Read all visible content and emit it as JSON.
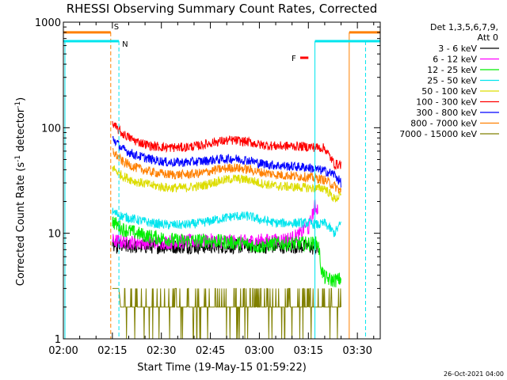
{
  "chart_data": {
    "type": "line",
    "title": "RHESSI Observing Summary Count Rates, Corrected",
    "xlabel": "Start Time (19-May-15 01:59:22)",
    "ylabel": "Corrected Count Rate (s⁻¹ detector⁻¹)",
    "y_scale": "log",
    "ylim": [
      1,
      1000
    ],
    "xlim_minutes": [
      0,
      97
    ],
    "x_ticks": [
      {
        "minute": 0,
        "label": "02:00"
      },
      {
        "minute": 15,
        "label": "02:15"
      },
      {
        "minute": 30,
        "label": "02:30"
      },
      {
        "minute": 45,
        "label": "02:45"
      },
      {
        "minute": 60,
        "label": "03:00"
      },
      {
        "minute": 75,
        "label": "03:15"
      },
      {
        "minute": 90,
        "label": "03:30"
      }
    ],
    "y_ticks": [
      {
        "value": 1,
        "label": "1"
      },
      {
        "value": 10,
        "label": "10"
      },
      {
        "value": 100,
        "label": "100"
      },
      {
        "value": 1000,
        "label": "1000"
      }
    ],
    "legend_header": [
      "Det 1,3,5,6,7,9,",
      "Att 0"
    ],
    "legend_position": "top-right",
    "timestamp": "26-Oct-2021 04:00",
    "series": [
      {
        "name": "3 - 6 keV",
        "color": "#000000",
        "minutes": [
          15,
          18,
          25,
          35,
          45,
          55,
          65,
          70,
          75,
          78
        ],
        "values": [
          7.5,
          7.5,
          7.5,
          7.5,
          7.5,
          7.5,
          7.5,
          7.5,
          7.5,
          7
        ]
      },
      {
        "name": "6 - 12 keV",
        "color": "#ff00ff",
        "minutes": [
          15,
          18,
          25,
          35,
          45,
          55,
          60,
          65,
          70,
          73,
          74,
          75,
          77,
          78
        ],
        "values": [
          8.5,
          8.3,
          8.2,
          8.3,
          8.5,
          8.3,
          8.5,
          8.5,
          9,
          10,
          12,
          11,
          18,
          17
        ]
      },
      {
        "name": "12 - 25 keV",
        "color": "#00ee00",
        "minutes": [
          15,
          18,
          25,
          35,
          45,
          55,
          60,
          65,
          70,
          75,
          78,
          79,
          80,
          82,
          84,
          85
        ],
        "values": [
          13,
          11,
          9.5,
          8.5,
          8.5,
          8,
          7.5,
          8,
          8,
          8,
          8,
          4.5,
          3.8,
          3.6,
          3.6,
          3.7
        ]
      },
      {
        "name": "25 - 50 keV",
        "color": "#00e5ee",
        "minutes": [
          15,
          18,
          22,
          27,
          32,
          37,
          42,
          47,
          52,
          57,
          60,
          65,
          70,
          75,
          78,
          80,
          83,
          85
        ],
        "values": [
          16,
          14.5,
          13.5,
          12.5,
          12,
          12,
          12.5,
          13.5,
          14.5,
          14.5,
          13.5,
          12.5,
          12.5,
          12.5,
          12,
          12.5,
          10,
          12.5
        ]
      },
      {
        "name": "50 - 100 keV",
        "color": "#dddd00",
        "minutes": [
          15,
          18,
          22,
          27,
          32,
          37,
          42,
          47,
          52,
          57,
          60,
          65,
          70,
          75,
          78,
          80,
          83,
          85
        ],
        "values": [
          42,
          35,
          31,
          28.5,
          27,
          27,
          28,
          31,
          33,
          32,
          30,
          28,
          27.5,
          27,
          26.5,
          27,
          21,
          23
        ]
      },
      {
        "name": "100 - 300 keV",
        "color": "#ff0000",
        "minutes": [
          15,
          18,
          22,
          27,
          32,
          37,
          42,
          47,
          52,
          57,
          60,
          65,
          70,
          75,
          78,
          80,
          83,
          85
        ],
        "values": [
          108,
          88,
          75,
          67,
          65,
          65,
          68,
          74,
          76,
          73,
          69,
          67,
          67,
          66,
          65,
          64,
          45,
          45
        ]
      },
      {
        "name": "300 - 800 keV",
        "color": "#0000ff",
        "minutes": [
          15,
          18,
          22,
          27,
          32,
          37,
          42,
          47,
          52,
          57,
          60,
          65,
          70,
          75,
          78,
          80,
          83,
          85
        ],
        "values": [
          80,
          63,
          55,
          50,
          47,
          47,
          48,
          50,
          51,
          49,
          46,
          44,
          43,
          42,
          40,
          39,
          36,
          30
        ]
      },
      {
        "name": "800 - 7000 keV",
        "color": "#ff8000",
        "minutes": [
          15,
          18,
          22,
          27,
          32,
          37,
          42,
          47,
          52,
          57,
          60,
          65,
          70,
          75,
          78,
          80,
          83,
          85
        ],
        "values": [
          60,
          48,
          42,
          38,
          36,
          36,
          37,
          40,
          42,
          40,
          38,
          36,
          35,
          34,
          33,
          32,
          28,
          25
        ]
      },
      {
        "name": "7000 - 15000 keV",
        "color": "#808000",
        "minutes": [
          15,
          17,
          17.5,
          25,
          35,
          45,
          55,
          65,
          75,
          85
        ],
        "values": [
          3,
          3,
          2,
          2,
          2,
          2,
          2,
          2,
          2,
          2
        ]
      }
    ],
    "flags": [
      {
        "label": "S",
        "color": "#ff8000",
        "level_value": 800,
        "segments": [
          [
            0,
            14.5
          ],
          [
            87.5,
            97
          ]
        ],
        "dashed_marker_minute": 14.5,
        "solid_marker_minute": 87.5
      },
      {
        "label": "N",
        "color": "#00e5ee",
        "level_value": 660,
        "segments": [
          [
            0,
            17
          ],
          [
            77,
            97
          ]
        ],
        "dashed_marker_minute": 17,
        "solid_marker_minute": 77
      },
      {
        "label": "F",
        "color": "#ff0000",
        "level_value": 460,
        "segments": [
          [
            72.5,
            75
          ]
        ]
      }
    ],
    "grid": false
  }
}
